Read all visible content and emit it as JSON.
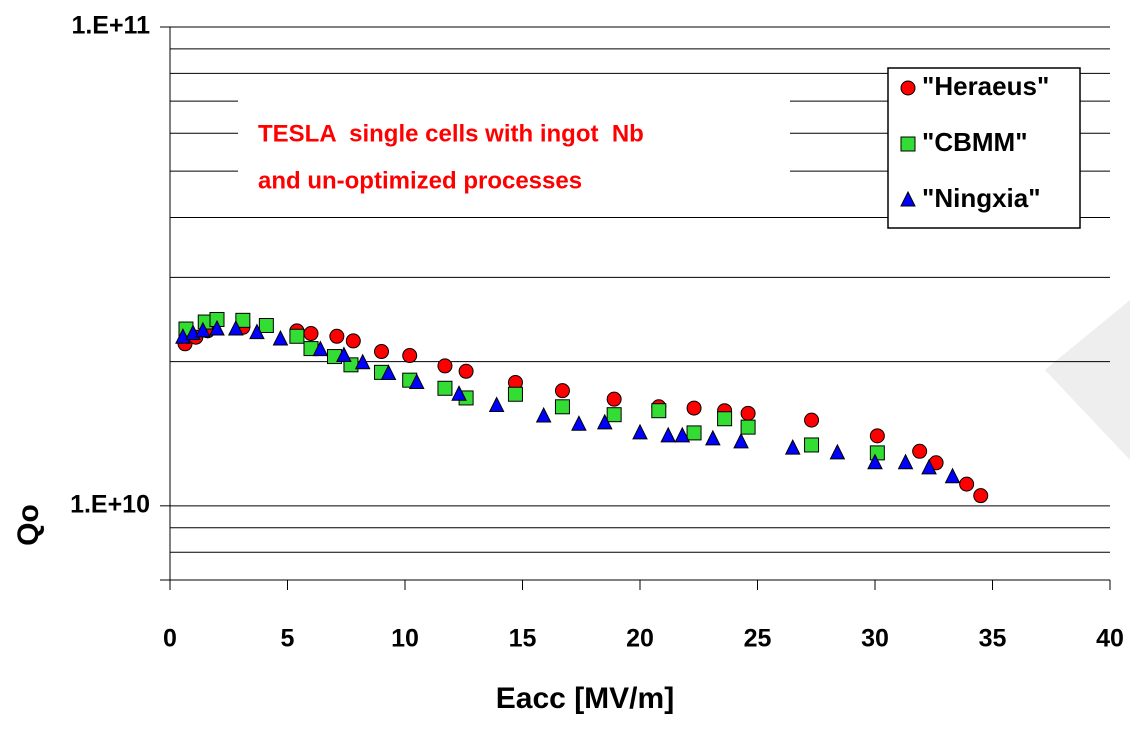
{
  "chart_data": {
    "type": "scatter",
    "x_label": "Eacc [MV/m]",
    "y_label": "Qo",
    "annotation": [
      "TESLA  single cells with ingot  Nb",
      "and un-optimized processes"
    ],
    "xlim": [
      0,
      40
    ],
    "xticks": [
      0,
      5,
      10,
      15,
      20,
      25,
      30,
      35,
      40
    ],
    "ylim": [
      7000000000.0,
      100000000000.0
    ],
    "y_log": true,
    "yticks": [
      {
        "value": 10000000000.0,
        "label": "1.E+10"
      },
      {
        "value": 100000000000.0,
        "label": "1.E+11"
      }
    ],
    "y_minor_ticks": [
      8000000000.0,
      9000000000.0,
      20000000000.0,
      30000000000.0,
      40000000000.0,
      50000000000.0,
      60000000000.0,
      70000000000.0,
      80000000000.0,
      90000000000.0
    ],
    "grid": true,
    "legend": "top-right",
    "series": [
      {
        "name": "\"Heraeus\"",
        "color": "#ff0000",
        "marker": "circle",
        "x": [
          0.64,
          1.1,
          1.6,
          3.1,
          5.4,
          6.0,
          7.1,
          7.8,
          9.0,
          10.2,
          11.7,
          12.6,
          14.7,
          16.7,
          18.9,
          20.8,
          22.3,
          23.6,
          24.6,
          27.3,
          30.1,
          31.9,
          32.6,
          33.9,
          34.5
        ],
        "values": [
          21800000000.0,
          22500000000.0,
          23200000000.0,
          23600000000.0,
          23200000000.0,
          22900000000.0,
          22600000000.0,
          22100000000.0,
          21000000000.0,
          20600000000.0,
          19600000000.0,
          19100000000.0,
          18100000000.0,
          17400000000.0,
          16700000000.0,
          16100000000.0,
          16000000000.0,
          15800000000.0,
          15600000000.0,
          15100000000.0,
          14000000000.0,
          13000000000.0,
          12300000000.0,
          11100000000.0,
          10500000000.0
        ]
      },
      {
        "name": "\"CBMM\"",
        "color": "#33dd33",
        "marker": "square",
        "x": [
          0.68,
          1.5,
          2.0,
          3.1,
          4.1,
          5.4,
          6.0,
          7.0,
          7.7,
          9.0,
          10.2,
          11.7,
          12.6,
          14.7,
          16.7,
          18.9,
          20.8,
          22.3,
          23.6,
          24.6,
          27.3,
          30.1
        ],
        "values": [
          23400000000.0,
          24200000000.0,
          24500000000.0,
          24400000000.0,
          23800000000.0,
          22600000000.0,
          21300000000.0,
          20500000000.0,
          19700000000.0,
          19000000000.0,
          18300000000.0,
          17600000000.0,
          16800000000.0,
          17100000000.0,
          16100000000.0,
          15500000000.0,
          15800000000.0,
          14200000000.0,
          15200000000.0,
          14600000000.0,
          13400000000.0,
          12900000000.0
        ]
      },
      {
        "name": "\"Ningxia\"",
        "color": "#0000ff",
        "marker": "triangle",
        "x": [
          0.55,
          0.98,
          1.4,
          2.0,
          2.8,
          3.7,
          4.7,
          6.4,
          7.4,
          8.2,
          9.3,
          10.5,
          12.3,
          13.9,
          15.9,
          17.4,
          18.5,
          20.0,
          21.2,
          21.8,
          23.1,
          24.3,
          26.5,
          28.4,
          30.0,
          31.3,
          32.3,
          33.3
        ],
        "values": [
          22500000000.0,
          22900000000.0,
          23200000000.0,
          23400000000.0,
          23400000000.0,
          23000000000.0,
          22300000000.0,
          21200000000.0,
          20600000000.0,
          19900000000.0,
          18900000000.0,
          18100000000.0,
          17100000000.0,
          16200000000.0,
          15400000000.0,
          14800000000.0,
          14900000000.0,
          14200000000.0,
          14000000000.0,
          14000000000.0,
          13800000000.0,
          13600000000.0,
          13200000000.0,
          12900000000.0,
          12300000000.0,
          12300000000.0,
          12000000000.0,
          11500000000.0
        ]
      }
    ]
  }
}
